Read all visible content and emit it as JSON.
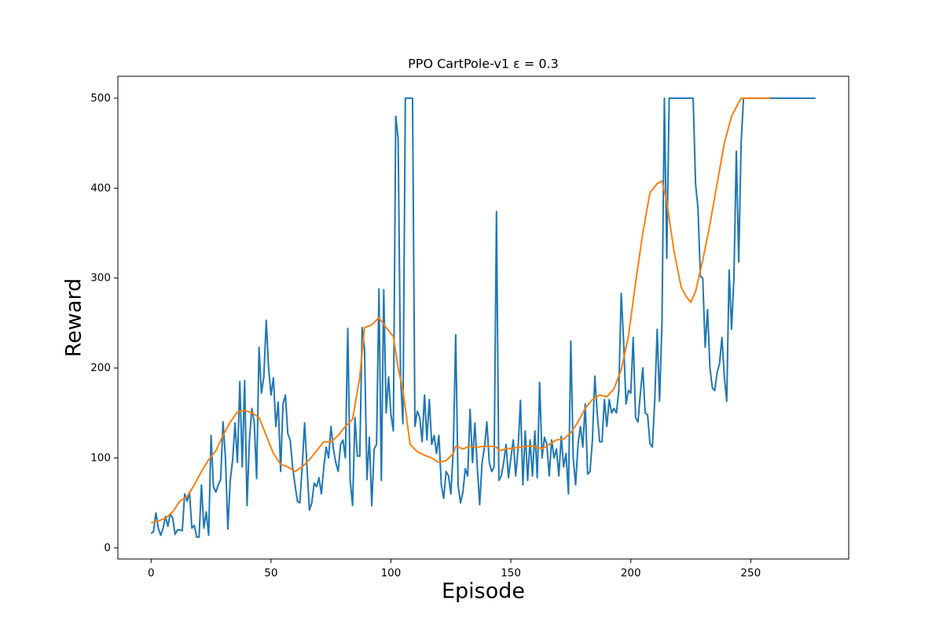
{
  "chart_data": {
    "type": "line",
    "title": "PPO CartPole-v1 ε = 0.3",
    "xlabel": "Episode",
    "ylabel": "Reward",
    "xlim": [
      -13.85,
      290.85
    ],
    "ylim": [
      -12.4,
      524.4
    ],
    "xticks": [
      0,
      50,
      100,
      150,
      200,
      250
    ],
    "yticks": [
      0,
      100,
      200,
      300,
      400,
      500
    ],
    "series": [
      {
        "color": "#1f77b4",
        "x": [
          0,
          1,
          2,
          3,
          4,
          5,
          6,
          7,
          8,
          9,
          10,
          11,
          12,
          13,
          14,
          15,
          16,
          17,
          18,
          19,
          20,
          21,
          22,
          23,
          24,
          25,
          26,
          27,
          28,
          29,
          30,
          31,
          32,
          33,
          34,
          35,
          36,
          37,
          38,
          39,
          40,
          41,
          42,
          43,
          44,
          45,
          46,
          47,
          48,
          49,
          50,
          51,
          52,
          53,
          54,
          55,
          56,
          57,
          58,
          59,
          60,
          61,
          62,
          63,
          64,
          65,
          66,
          67,
          68,
          69,
          70,
          71,
          72,
          73,
          74,
          75,
          76,
          77,
          78,
          79,
          80,
          81,
          82,
          83,
          84,
          85,
          86,
          87,
          88,
          89,
          90,
          91,
          92,
          93,
          94,
          95,
          96,
          97,
          98,
          99,
          100,
          101,
          102,
          103,
          104,
          105,
          106,
          107,
          108,
          109,
          110,
          111,
          112,
          113,
          114,
          115,
          116,
          117,
          118,
          119,
          120,
          121,
          122,
          123,
          124,
          125,
          126,
          127,
          128,
          129,
          130,
          131,
          132,
          133,
          134,
          135,
          136,
          137,
          138,
          139,
          140,
          141,
          142,
          143,
          144,
          145,
          146,
          147,
          148,
          149,
          150,
          151,
          152,
          153,
          154,
          155,
          156,
          157,
          158,
          159,
          160,
          161,
          162,
          163,
          164,
          165,
          166,
          167,
          168,
          169,
          170,
          171,
          172,
          173,
          174,
          175,
          176,
          177,
          178,
          179,
          180,
          181,
          182,
          183,
          184,
          185,
          186,
          187,
          188,
          189,
          190,
          191,
          192,
          193,
          194,
          195,
          196,
          197,
          198,
          199,
          200,
          201,
          202,
          203,
          204,
          205,
          206,
          207,
          208,
          209,
          210,
          211,
          212,
          213,
          214,
          215,
          216,
          217,
          218,
          219,
          220,
          221,
          222,
          223,
          224,
          225,
          226,
          227,
          228,
          229,
          230,
          231,
          232,
          233,
          234,
          235,
          236,
          237,
          238,
          239,
          240,
          241,
          242,
          243,
          244,
          245,
          246,
          247,
          248,
          249,
          250,
          251,
          252,
          253,
          254,
          255,
          256,
          257,
          258,
          259,
          260,
          261,
          262,
          263,
          264,
          265,
          266,
          267,
          268,
          269,
          270,
          271,
          272,
          273,
          274,
          275,
          276,
          277
        ],
        "values": [
          16,
          18,
          39,
          22,
          14,
          22,
          35,
          24,
          38,
          33,
          15,
          20,
          20,
          19,
          60,
          52,
          62,
          22,
          25,
          12,
          12,
          70,
          22,
          40,
          14,
          125,
          68,
          62,
          70,
          76,
          140,
          100,
          21,
          75,
          98,
          139,
          95,
          185,
          90,
          186,
          47,
          120,
          155,
          140,
          77,
          223,
          172,
          190,
          253,
          200,
          170,
          189,
          135,
          162,
          85,
          160,
          170,
          127,
          120,
          90,
          70,
          52,
          50,
          90,
          139,
          90,
          42,
          50,
          72,
          68,
          78,
          60,
          90,
          112,
          100,
          135,
          110,
          95,
          85,
          115,
          120,
          100,
          244,
          75,
          47,
          145,
          102,
          102,
          245,
          220,
          76,
          123,
          47,
          110,
          115,
          288,
          75,
          287,
          150,
          190,
          148,
          130,
          480,
          455,
          190,
          138,
          500,
          500,
          500,
          500,
          135,
          152,
          145,
          118,
          170,
          120,
          165,
          115,
          125,
          105,
          125,
          70,
          55,
          85,
          80,
          60,
          110,
          237,
          70,
          50,
          62,
          88,
          80,
          154,
          95,
          139,
          90,
          48,
          95,
          112,
          140,
          95,
          85,
          90,
          374,
          75,
          80,
          95,
          115,
          78,
          100,
          120,
          80,
          110,
          164,
          70,
          130,
          75,
          120,
          80,
          130,
          78,
          184,
          100,
          123,
          115,
          80,
          120,
          100,
          110,
          80,
          124,
          90,
          105,
          60,
          230,
          100,
          70,
          115,
          135,
          112,
          160,
          82,
          85,
          120,
          191,
          150,
          118,
          118,
          165,
          135,
          165,
          150,
          155,
          150,
          175,
          283,
          230,
          160,
          175,
          172,
          234,
          145,
          140,
          172,
          200,
          150,
          148,
          116,
          112,
          165,
          243,
          163,
          250,
          500,
          322,
          500,
          500,
          500,
          500,
          500,
          500,
          500,
          500,
          500,
          500,
          500,
          405,
          378,
          302,
          300,
          223,
          265,
          200,
          178,
          175,
          195,
          205,
          234,
          190,
          163,
          309,
          243,
          300,
          441,
          318,
          450,
          500,
          500,
          500,
          500,
          500,
          500,
          500,
          500,
          500,
          500,
          500,
          500,
          500,
          500,
          500,
          500,
          500,
          500,
          500,
          500,
          500,
          500,
          500,
          500,
          500,
          500,
          500,
          500,
          500,
          500,
          500
        ]
      },
      {
        "color": "#ff7f0e",
        "x": [
          0,
          3,
          6,
          9,
          12,
          15,
          18,
          21,
          24,
          27,
          30,
          33,
          36,
          39,
          42,
          45,
          48,
          51,
          54,
          57,
          60,
          63,
          66,
          69,
          72,
          75,
          78,
          81,
          84,
          87,
          89,
          92,
          95,
          98,
          101,
          103,
          105,
          108,
          111,
          114,
          117,
          120,
          123,
          126,
          127,
          130,
          133,
          136,
          139,
          142,
          144,
          145,
          148,
          151,
          154,
          157,
          160,
          163,
          166,
          169,
          172,
          175,
          178,
          181,
          184,
          187,
          190,
          193,
          196,
          199,
          202,
          205,
          208,
          211,
          213,
          215,
          218,
          221,
          223,
          225,
          227,
          230,
          233,
          236,
          239,
          242,
          245,
          246,
          258
        ],
        "values": [
          28,
          30,
          33,
          40,
          52,
          57,
          70,
          85,
          98,
          108,
          125,
          140,
          151,
          153,
          150,
          145,
          125,
          105,
          93,
          90,
          85,
          90,
          98,
          108,
          118,
          118,
          125,
          135,
          143,
          190,
          245,
          248,
          256,
          245,
          235,
          200,
          175,
          115,
          107,
          103,
          100,
          95,
          97,
          105,
          113,
          110,
          113,
          112,
          113,
          113,
          112,
          108,
          110,
          111,
          112,
          113,
          113,
          110,
          115,
          120,
          121,
          128,
          140,
          155,
          165,
          170,
          168,
          177,
          198,
          235,
          295,
          350,
          395,
          405,
          408,
          385,
          330,
          290,
          280,
          273,
          285,
          320,
          360,
          405,
          450,
          480,
          495,
          500,
          500
        ]
      }
    ]
  }
}
